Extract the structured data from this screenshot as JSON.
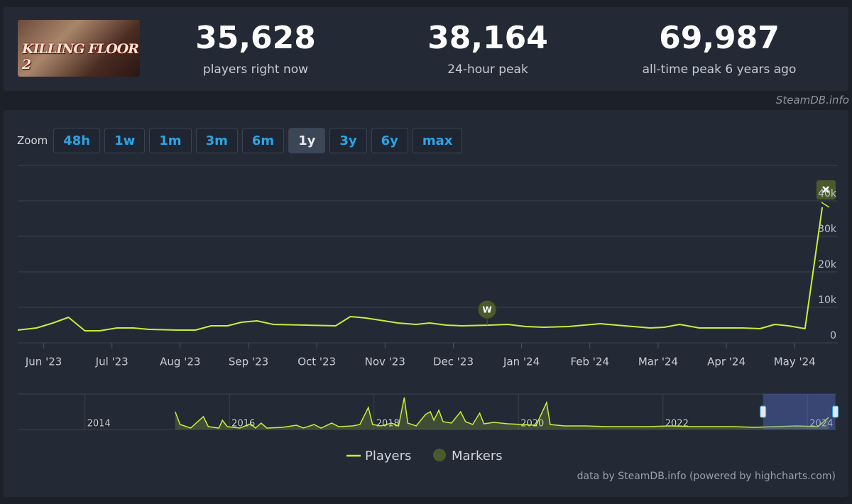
{
  "header": {
    "game_logo": "KILLING FLOOR 2",
    "stats": [
      {
        "value": "35,628",
        "label": "players right now"
      },
      {
        "value": "38,164",
        "label": "24-hour peak"
      },
      {
        "value": "69,987",
        "label": "all-time peak 6 years ago"
      }
    ]
  },
  "source_label": "SteamDB.info",
  "zoom": {
    "label": "Zoom",
    "buttons": [
      "48h",
      "1w",
      "1m",
      "3m",
      "6m",
      "1y",
      "3y",
      "6y",
      "max"
    ],
    "active_index": 5
  },
  "chart_data": {
    "type": "line",
    "x": [
      2023.385,
      2023.408,
      2023.428,
      2023.447,
      2023.467,
      2023.485,
      2023.506,
      2023.526,
      2023.545,
      2023.58,
      2023.602,
      2023.621,
      2023.641,
      2023.658,
      2023.677,
      2023.697,
      2023.736,
      2023.773,
      2023.791,
      2023.81,
      2023.849,
      2023.871,
      2023.888,
      2023.908,
      2023.927,
      2023.962,
      2023.983,
      2024.005,
      2024.027,
      2024.057,
      2024.096,
      2024.126,
      2024.157,
      2024.174,
      2024.193,
      2024.217,
      2024.239,
      2024.27,
      2024.291,
      2024.309,
      2024.326,
      2024.346,
      2024.367
    ],
    "series": [
      {
        "name": "Players",
        "color": "#c5ef3c",
        "values": [
          3600,
          4200,
          5600,
          7200,
          3400,
          3400,
          4200,
          4200,
          3800,
          3600,
          3600,
          4800,
          4800,
          5800,
          6200,
          5200,
          5000,
          4800,
          7400,
          7000,
          5600,
          5200,
          5600,
          5000,
          4800,
          5000,
          5200,
          4600,
          4400,
          4600,
          5400,
          4800,
          4200,
          4400,
          5200,
          4200,
          4200,
          4200,
          4000,
          5200,
          4800,
          4000,
          38200
        ]
      }
    ],
    "xlim": [
      2023.385,
      2024.386
    ],
    "xticks": [
      {
        "value": 2023.4167,
        "label": "Jun '23"
      },
      {
        "value": 2023.5,
        "label": "Jul '23"
      },
      {
        "value": 2023.5833,
        "label": "Aug '23"
      },
      {
        "value": 2023.6667,
        "label": "Sep '23"
      },
      {
        "value": 2023.75,
        "label": "Oct '23"
      },
      {
        "value": 2023.8333,
        "label": "Nov '23"
      },
      {
        "value": 2023.9167,
        "label": "Dec '23"
      },
      {
        "value": 2024,
        "label": "Jan '24"
      },
      {
        "value": 2024.0833,
        "label": "Feb '24"
      },
      {
        "value": 2024.1667,
        "label": "Mar '24"
      },
      {
        "value": 2024.25,
        "label": "Apr '24"
      },
      {
        "value": 2024.3333,
        "label": "May '24"
      }
    ],
    "ylim": [
      0,
      50000
    ],
    "yticks": [
      0,
      {
        "value": 10000,
        "label": "10k"
      },
      {
        "value": 20000,
        "label": "20k"
      },
      {
        "value": 30000,
        "label": "30k"
      },
      {
        "value": 40000,
        "label": "40k"
      }
    ],
    "grid": true,
    "markers": {
      "name": "Markers",
      "color": "#4a5a2c",
      "points": [
        {
          "x": 2023.958,
          "label": "W"
        }
      ]
    },
    "navigator": {
      "x": [
        2015.249,
        2015.317,
        2015.463,
        2015.639,
        2015.707,
        2015.854,
        2015.902,
        2015.971,
        2016.146,
        2016.293,
        2016.361,
        2016.439,
        2016.517,
        2016.732,
        2016.927,
        2017.024,
        2017.171,
        2017.268,
        2017.415,
        2017.512,
        2017.707,
        2017.805,
        2017.922,
        2017.98,
        2018.098,
        2018.244,
        2018.341,
        2018.42,
        2018.468,
        2018.585,
        2018.712,
        2018.78,
        2018.829,
        2018.898,
        2018.956,
        2019.073,
        2019.2,
        2019.268,
        2019.366,
        2019.463,
        2019.522,
        2019.659,
        2019.854,
        2020.049,
        2020.244,
        2020.39,
        2020.439,
        2020.634,
        2020.927,
        2021.22,
        2021.512,
        2021.805,
        2022.098,
        2022.39,
        2022.683,
        2022.976,
        2023.268,
        2023.561,
        2023.854,
        2024.146,
        2024.293
      ],
      "values": [
        35000,
        9800,
        2800,
        25200,
        5600,
        2800,
        18200,
        5600,
        2800,
        11200,
        2800,
        12600,
        2800,
        4200,
        8400,
        2800,
        9800,
        2800,
        12600,
        5600,
        7000,
        9800,
        43400,
        9800,
        7000,
        12600,
        7000,
        63000,
        12600,
        7000,
        29400,
        35000,
        18200,
        37800,
        15400,
        12600,
        35000,
        15400,
        9800,
        32200,
        11200,
        14000,
        11200,
        9800,
        8400,
        53200,
        9800,
        7000,
        7000,
        5600,
        5600,
        5600,
        7000,
        5600,
        5600,
        5600,
        4200,
        5600,
        7000,
        5600,
        23800
      ],
      "xlim": [
        2013.07,
        2024.4
      ],
      "ylim": [
        0,
        70000
      ],
      "xticks": [
        2014,
        2016,
        2018,
        2020,
        2022,
        2024
      ]
    }
  },
  "credits": "data by SteamDB.info (powered by highcharts.com)"
}
